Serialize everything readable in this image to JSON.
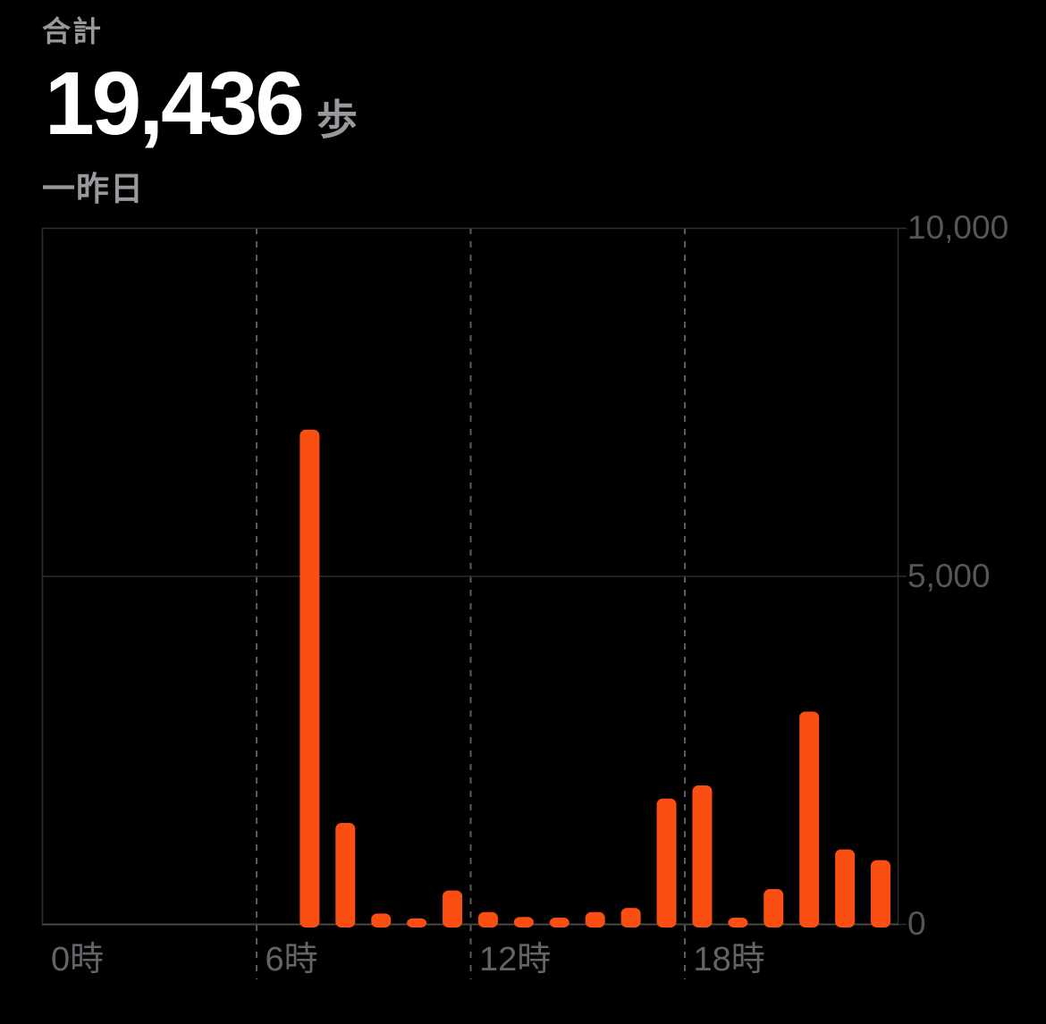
{
  "screen": {
    "header": {
      "total_label": "合計",
      "total_value": "19,436",
      "total_unit": "歩",
      "date_label": "一昨日"
    }
  },
  "colors": {
    "background": "#000000",
    "bar": "#FB4E12",
    "value_text": "#FFFFFF",
    "secondary_text": "#98989D",
    "y_tick_text": "#55555A",
    "x_tick_text": "#636368",
    "grid_line": "#2E2E31",
    "axis_line": "#47474A",
    "dashed_line": "#5B5B5F"
  },
  "chart_data": {
    "type": "bar",
    "x_unit": "hour_of_day",
    "hours": [
      0,
      1,
      2,
      3,
      4,
      5,
      6,
      7,
      8,
      9,
      10,
      11,
      12,
      13,
      14,
      15,
      16,
      17,
      18,
      19,
      20,
      21,
      22,
      23
    ],
    "values": [
      0,
      0,
      0,
      0,
      0,
      0,
      0,
      7100,
      1450,
      150,
      80,
      480,
      170,
      100,
      90,
      170,
      230,
      1800,
      1990,
      90,
      500,
      3050,
      1070,
      916
    ],
    "total_steps": 19436,
    "ylim": [
      0,
      10000
    ],
    "y_ticks": [
      {
        "value": 10000,
        "label": "10,000"
      },
      {
        "value": 5000,
        "label": "5,000"
      },
      {
        "value": 0,
        "label": "0"
      }
    ],
    "x_ticks": [
      {
        "hour": 0,
        "label": "0時"
      },
      {
        "hour": 6,
        "label": "6時"
      },
      {
        "hour": 12,
        "label": "12時"
      },
      {
        "hour": 18,
        "label": "18時"
      }
    ],
    "grid": {
      "horizontal_solid_values": [
        10000,
        5000
      ],
      "vertical_dashed_hours": [
        6,
        12,
        18
      ],
      "legend": "none"
    }
  }
}
